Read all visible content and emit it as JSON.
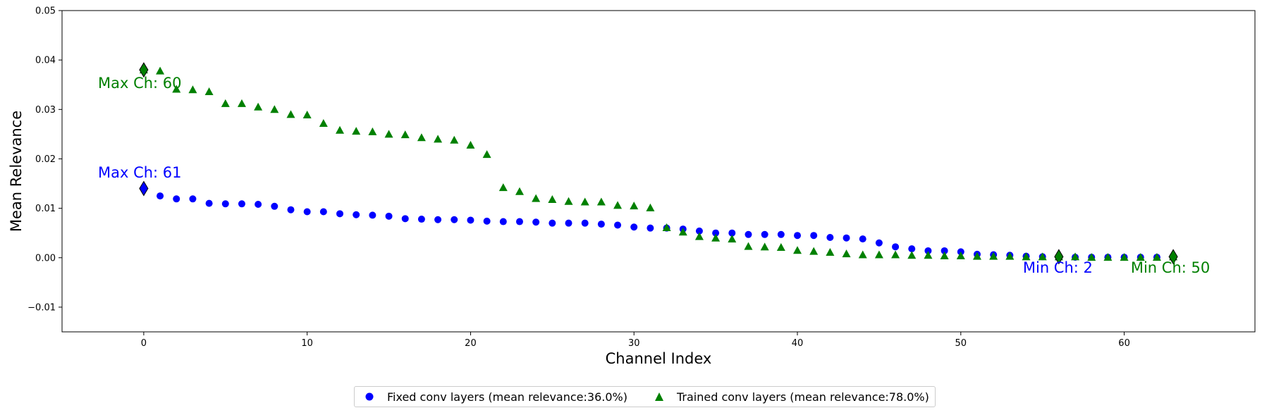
{
  "chart_data": {
    "type": "scatter",
    "xlabel": "Channel Index",
    "ylabel": "Mean Relevance",
    "xlim": [
      -5,
      68
    ],
    "ylim": [
      -0.015,
      0.05
    ],
    "xticks": [
      0,
      10,
      20,
      30,
      40,
      50,
      60
    ],
    "yticks": [
      -0.01,
      0.0,
      0.01,
      0.02,
      0.03,
      0.04,
      0.05
    ],
    "ytick_labels": [
      "−0.01",
      "0.00",
      "0.01",
      "0.02",
      "0.03",
      "0.04",
      "0.05"
    ],
    "grid": false,
    "legend_placement": "bottom-center",
    "series": [
      {
        "name": "Fixed conv layers (mean relevance:36.0%)",
        "marker": "circle",
        "color": "#0000ff",
        "x": [
          0,
          1,
          2,
          3,
          4,
          5,
          6,
          7,
          8,
          9,
          10,
          11,
          12,
          13,
          14,
          15,
          16,
          17,
          18,
          19,
          20,
          21,
          22,
          23,
          24,
          25,
          26,
          27,
          28,
          29,
          30,
          31,
          32,
          33,
          34,
          35,
          36,
          37,
          38,
          39,
          40,
          41,
          42,
          43,
          44,
          45,
          46,
          47,
          48,
          49,
          50,
          51,
          52,
          53,
          54,
          55,
          56,
          57,
          58,
          59,
          60,
          61,
          62,
          63
        ],
        "y": [
          0.014,
          0.0125,
          0.0119,
          0.0119,
          0.011,
          0.0109,
          0.0109,
          0.0108,
          0.0104,
          0.0097,
          0.0093,
          0.0093,
          0.0089,
          0.0087,
          0.0086,
          0.0084,
          0.0079,
          0.0078,
          0.0077,
          0.0077,
          0.0076,
          0.0074,
          0.0073,
          0.0073,
          0.0072,
          0.007,
          0.007,
          0.007,
          0.0068,
          0.0066,
          0.0062,
          0.006,
          0.006,
          0.0058,
          0.0054,
          0.005,
          0.005,
          0.0047,
          0.0047,
          0.0047,
          0.0045,
          0.0045,
          0.0041,
          0.004,
          0.0038,
          0.003,
          0.0022,
          0.0018,
          0.0014,
          0.0014,
          0.0012,
          0.0007,
          0.0006,
          0.0005,
          0.0003,
          0.0002,
          0.0002,
          0.0001,
          0.0001,
          0.0001,
          0.0001,
          0.0001,
          0.0001,
          0.0001
        ]
      },
      {
        "name": "Trained conv layers (mean relevance:78.0%)",
        "marker": "triangle",
        "color": "#008000",
        "x": [
          0,
          1,
          2,
          3,
          4,
          5,
          6,
          7,
          8,
          9,
          10,
          11,
          12,
          13,
          14,
          15,
          16,
          17,
          18,
          19,
          20,
          21,
          22,
          23,
          24,
          25,
          26,
          27,
          28,
          29,
          30,
          31,
          32,
          33,
          34,
          35,
          36,
          37,
          38,
          39,
          40,
          41,
          42,
          43,
          44,
          45,
          46,
          47,
          48,
          49,
          50,
          51,
          52,
          53,
          54,
          55,
          56,
          57,
          58,
          59,
          60,
          61,
          62,
          63
        ],
        "y": [
          0.038,
          0.0378,
          0.0341,
          0.034,
          0.0336,
          0.0312,
          0.0312,
          0.0305,
          0.03,
          0.029,
          0.0289,
          0.0272,
          0.0258,
          0.0256,
          0.0255,
          0.025,
          0.0249,
          0.0243,
          0.024,
          0.0238,
          0.0228,
          0.0209,
          0.0142,
          0.0134,
          0.012,
          0.0118,
          0.0114,
          0.0113,
          0.0113,
          0.0106,
          0.0105,
          0.0101,
          0.0061,
          0.0052,
          0.0043,
          0.004,
          0.0038,
          0.0023,
          0.0022,
          0.0021,
          0.0015,
          0.0013,
          0.0011,
          0.0008,
          0.0006,
          0.0006,
          0.0006,
          0.0005,
          0.0005,
          0.0004,
          0.0004,
          0.0003,
          0.0003,
          0.0003,
          0.0002,
          0.0002,
          0.0002,
          0.0002,
          0.0001,
          0.0001,
          0.0001,
          0.0001,
          0.0001,
          0.0002
        ]
      }
    ],
    "highlight_markers": [
      {
        "series": 1,
        "x": 0,
        "y": 0.038,
        "fill": "#008000"
      },
      {
        "series": 0,
        "x": 0,
        "y": 0.014,
        "fill": "#0000ff"
      },
      {
        "series": 1,
        "x": 56,
        "y": 0.0002,
        "fill": "#008000"
      },
      {
        "series": 1,
        "x": 63,
        "y": 0.0002,
        "fill": "#008000"
      }
    ],
    "annotations": [
      {
        "text": "Max Ch: 60",
        "x": -2.8,
        "y": 0.0343,
        "color": "#008000"
      },
      {
        "text": "Max Ch: 61",
        "x": -2.8,
        "y": 0.0162,
        "color": "#0000ff"
      },
      {
        "text": "Min Ch: 2",
        "x": 53.8,
        "y": -0.003,
        "color": "#0000ff"
      },
      {
        "text": "Min Ch: 50",
        "x": 60.4,
        "y": -0.003,
        "color": "#008000"
      }
    ]
  }
}
